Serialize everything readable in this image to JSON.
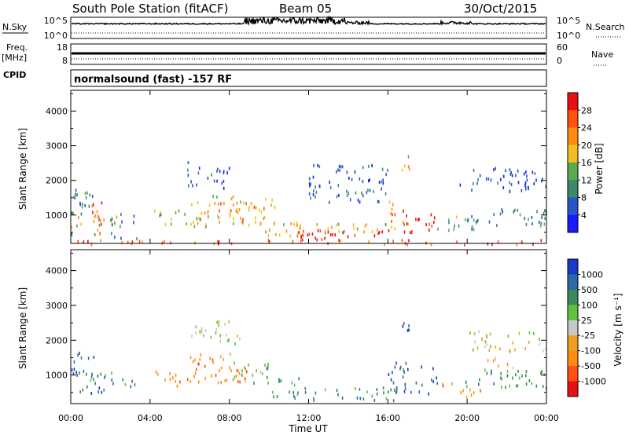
{
  "header": {
    "station": "South Pole Station (fitACF)",
    "beam": "Beam 05",
    "date": "30/Oct/2015",
    "cpid_label": "CPID",
    "cpid_value": "normalsound (fast) -157 RF"
  },
  "strip_labels": {
    "nsky": "N.Sky",
    "nsearch": "N.Search",
    "freq": "Freq.",
    "freq_unit": "[MHz]",
    "nave": "Nave",
    "nsky_ticks": [
      "10^5",
      "10^0"
    ],
    "nsearch_ticks": [
      "10^5",
      "10^0"
    ],
    "freq_ticks": [
      "18",
      "8"
    ],
    "nave_ticks": [
      "60",
      "0"
    ]
  },
  "chart_data": [
    {
      "type": "heatmap",
      "name": "power-panel",
      "ylabel": "Slant Range [km]",
      "xlabel": "Time UT",
      "x_ticks": [
        "00:00",
        "04:00",
        "08:00",
        "12:00",
        "16:00",
        "20:00",
        "00:00"
      ],
      "y_ticks": [
        1000,
        2000,
        3000,
        4000
      ],
      "xlim": [
        0,
        24
      ],
      "ylim": [
        180,
        4600
      ],
      "colorbar": {
        "label": "Power [dB]",
        "tick_labels": [
          "4",
          "8",
          "12",
          "16",
          "20",
          "24",
          "28"
        ],
        "colors": [
          "#1a1aff",
          "#2a55c8",
          "#3a8a6a",
          "#5aaa50",
          "#f0c020",
          "#ff8c10",
          "#ff5010",
          "#e81010"
        ]
      },
      "regions": [
        {
          "t0": 0.0,
          "t1": 2.3,
          "r0": 600,
          "r1": 1000,
          "level": 4
        },
        {
          "t0": 0.0,
          "t1": 1.2,
          "r0": 1000,
          "r1": 1800,
          "level": 2
        },
        {
          "t0": 0.9,
          "t1": 1.6,
          "r0": 400,
          "r1": 1400,
          "level": 6
        },
        {
          "t0": 0.0,
          "t1": 3.6,
          "r0": 300,
          "r1": 520,
          "level": 2
        },
        {
          "t0": 2.0,
          "t1": 3.3,
          "r0": 700,
          "r1": 1100,
          "level": 2
        },
        {
          "t0": 4.2,
          "t1": 6.5,
          "r0": 700,
          "r1": 1200,
          "level": 3
        },
        {
          "t0": 5.8,
          "t1": 8.0,
          "r0": 1800,
          "r1": 2600,
          "level": 1
        },
        {
          "t0": 6.0,
          "t1": 10.3,
          "r0": 700,
          "r1": 1600,
          "level": 4
        },
        {
          "t0": 7.3,
          "t1": 9.8,
          "r0": 800,
          "r1": 1400,
          "level": 5
        },
        {
          "t0": 9.8,
          "t1": 11.6,
          "r0": 400,
          "r1": 900,
          "level": 4
        },
        {
          "t0": 11.0,
          "t1": 16.3,
          "r0": 300,
          "r1": 600,
          "level": 7
        },
        {
          "t0": 11.0,
          "t1": 16.0,
          "r0": 550,
          "r1": 800,
          "level": 4
        },
        {
          "t0": 12.0,
          "t1": 16.0,
          "r0": 1400,
          "r1": 2500,
          "level": 1
        },
        {
          "t0": 16.0,
          "t1": 17.0,
          "r0": 600,
          "r1": 1500,
          "level": 5
        },
        {
          "t0": 16.4,
          "t1": 18.4,
          "r0": 500,
          "r1": 1200,
          "level": 7
        },
        {
          "t0": 16.6,
          "t1": 17.1,
          "r0": 2300,
          "r1": 2900,
          "level": 4
        },
        {
          "t0": 18.4,
          "t1": 20.6,
          "r0": 600,
          "r1": 1000,
          "level": 3
        },
        {
          "t0": 20.0,
          "t1": 24.0,
          "r0": 600,
          "r1": 1200,
          "level": 2
        },
        {
          "t0": 19.5,
          "t1": 23.5,
          "r0": 1700,
          "r1": 2400,
          "level": 1
        },
        {
          "t0": 22.8,
          "t1": 24.0,
          "r0": 1800,
          "r1": 2300,
          "level": 1
        },
        {
          "t0": 0.0,
          "t1": 24.0,
          "r0": 180,
          "r1": 320,
          "level": 6
        }
      ]
    },
    {
      "type": "heatmap",
      "name": "velocity-panel",
      "ylabel": "Slant Range [km]",
      "xlabel": "Time UT",
      "x_ticks": [
        "00:00",
        "04:00",
        "08:00",
        "12:00",
        "16:00",
        "20:00",
        "00:00"
      ],
      "y_ticks": [
        1000,
        2000,
        3000,
        4000
      ],
      "xlim": [
        0,
        24
      ],
      "ylim": [
        180,
        4600
      ],
      "colorbar": {
        "label": "Velocity [m s⁻¹]",
        "tick_labels": [
          "1000",
          "500",
          "100",
          "25",
          "-25",
          "-100",
          "-500",
          "-1000"
        ],
        "colors": [
          "#1a3ac8",
          "#2a6aa8",
          "#3a8a5a",
          "#60c040",
          "#c8c8c8",
          "#f0a020",
          "#ff8c10",
          "#ff5010",
          "#e81010"
        ]
      },
      "regions": [
        {
          "t0": 0.0,
          "t1": 2.3,
          "r0": 500,
          "r1": 1100,
          "level": 2
        },
        {
          "t0": 0.0,
          "t1": 1.2,
          "r0": 1100,
          "r1": 1700,
          "level": 1
        },
        {
          "t0": 1.0,
          "t1": 1.6,
          "r0": 400,
          "r1": 1200,
          "level": 0
        },
        {
          "t0": 2.0,
          "t1": 3.3,
          "r0": 700,
          "r1": 1000,
          "level": 2
        },
        {
          "t0": 4.2,
          "t1": 6.2,
          "r0": 700,
          "r1": 1200,
          "level": 6
        },
        {
          "t0": 6.0,
          "t1": 9.0,
          "r0": 800,
          "r1": 1700,
          "level": 6
        },
        {
          "t0": 8.0,
          "t1": 10.0,
          "r0": 800,
          "r1": 1400,
          "level": 3
        },
        {
          "t0": 6.0,
          "t1": 8.5,
          "r0": 1900,
          "r1": 2600,
          "level": 4
        },
        {
          "t0": 10.0,
          "t1": 11.5,
          "r0": 400,
          "r1": 1000,
          "level": 2
        },
        {
          "t0": 11.0,
          "t1": 16.3,
          "r0": 300,
          "r1": 700,
          "level": 2
        },
        {
          "t0": 16.0,
          "t1": 18.5,
          "r0": 500,
          "r1": 1400,
          "level": 1
        },
        {
          "t0": 16.6,
          "t1": 17.1,
          "r0": 2300,
          "r1": 2900,
          "level": 0
        },
        {
          "t0": 18.5,
          "t1": 20.8,
          "r0": 400,
          "r1": 800,
          "level": 6
        },
        {
          "t0": 19.6,
          "t1": 24.0,
          "r0": 600,
          "r1": 1200,
          "level": 2
        },
        {
          "t0": 20.0,
          "t1": 24.0,
          "r0": 1700,
          "r1": 2300,
          "level": 4
        },
        {
          "t0": 21.0,
          "t1": 22.5,
          "r0": 1200,
          "r1": 1700,
          "level": 5
        }
      ]
    }
  ]
}
